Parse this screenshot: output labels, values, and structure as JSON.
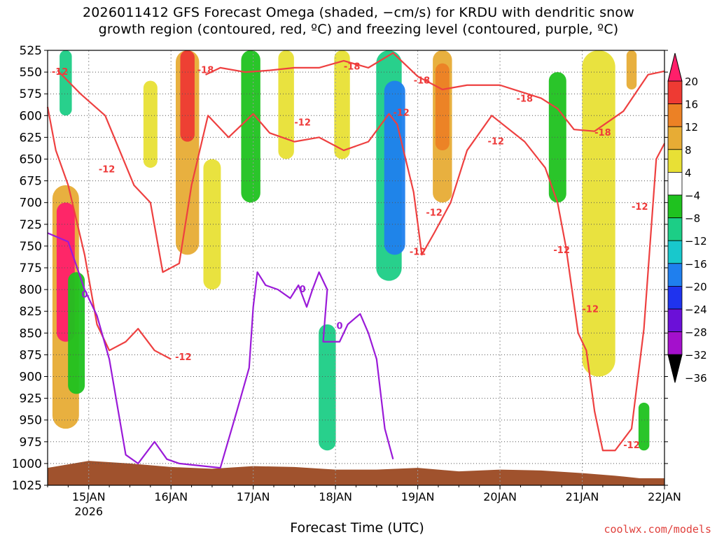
{
  "title": "2026011412 GFS Forecast Omega (shaded, −cm/s) for KRDU with dendritic snow\ngrowth region (contoured, red, ºC) and freezing level (contoured, purple, ºC)",
  "xlabel": "Forecast Time (UTC)",
  "credit": "coolwx.com/models",
  "chart_data": {
    "type": "heatmap",
    "title": "2026011412 GFS Forecast Omega (shaded, −cm/s) for KRDU with dendritic snow growth region (contoured, red, ºC) and freezing level (contoured, purple, ºC)",
    "xlabel": "Forecast Time (UTC)",
    "ylabel": "",
    "x_ticks": [
      "15JAN",
      "16JAN",
      "17JAN",
      "18JAN",
      "19JAN",
      "20JAN",
      "21JAN",
      "22JAN"
    ],
    "x_year_label": "2026",
    "xlim_days": [
      14.5,
      22.0
    ],
    "y_ticks": [
      525,
      550,
      575,
      600,
      625,
      650,
      675,
      700,
      725,
      750,
      775,
      800,
      825,
      850,
      875,
      900,
      925,
      950,
      975,
      1000,
      1025
    ],
    "ylim": [
      1025,
      525
    ],
    "grid": true,
    "colorbar": {
      "labels": [
        20,
        16,
        12,
        8,
        4,
        -4,
        -8,
        -12,
        -16,
        -20,
        -24,
        -28,
        -32,
        -36
      ],
      "colors": [
        "#ff1f6a",
        "#ee3a33",
        "#ec8125",
        "#e7ac35",
        "#e8e035",
        "#ffffff",
        "#1fc21f",
        "#1cce86",
        "#18c8cc",
        "#1f7fee",
        "#1f33ee",
        "#6b10d8",
        "#a410cc",
        "#a8a8a8",
        "#000000"
      ]
    },
    "shading_blobs": [
      {
        "day": 14.72,
        "p_top": 525,
        "p_bot": 600,
        "value": -12
      },
      {
        "day": 14.72,
        "p_top": 680,
        "p_bot": 960,
        "value": 8
      },
      {
        "day": 14.72,
        "p_top": 700,
        "p_bot": 860,
        "value": 20
      },
      {
        "day": 14.85,
        "p_top": 780,
        "p_bot": 920,
        "value": -8
      },
      {
        "day": 15.75,
        "p_top": 560,
        "p_bot": 660,
        "value": 4
      },
      {
        "day": 16.2,
        "p_top": 525,
        "p_bot": 760,
        "value": 8
      },
      {
        "day": 16.2,
        "p_top": 525,
        "p_bot": 630,
        "value": 16
      },
      {
        "day": 16.5,
        "p_top": 650,
        "p_bot": 800,
        "value": 4
      },
      {
        "day": 16.97,
        "p_top": 525,
        "p_bot": 700,
        "value": -8
      },
      {
        "day": 17.4,
        "p_top": 525,
        "p_bot": 650,
        "value": 4
      },
      {
        "day": 17.9,
        "p_top": 840,
        "p_bot": 985,
        "value": -12
      },
      {
        "day": 18.08,
        "p_top": 525,
        "p_bot": 650,
        "value": 4
      },
      {
        "day": 18.65,
        "p_top": 525,
        "p_bot": 790,
        "value": -12
      },
      {
        "day": 18.72,
        "p_top": 560,
        "p_bot": 760,
        "value": -20
      },
      {
        "day": 19.3,
        "p_top": 525,
        "p_bot": 700,
        "value": 8
      },
      {
        "day": 19.3,
        "p_top": 540,
        "p_bot": 640,
        "value": 12
      },
      {
        "day": 20.7,
        "p_top": 550,
        "p_bot": 700,
        "value": -8
      },
      {
        "day": 21.2,
        "p_top": 525,
        "p_bot": 900,
        "value": 4
      },
      {
        "day": 21.6,
        "p_top": 525,
        "p_bot": 570,
        "value": 8
      },
      {
        "day": 21.75,
        "p_top": 930,
        "p_bot": 985,
        "value": -8
      }
    ],
    "series": [
      {
        "name": "-18",
        "color": "#ee4040",
        "points": [
          [
            16.42,
            553
          ],
          [
            16.6,
            545
          ],
          [
            16.9,
            550
          ],
          [
            17.2,
            548
          ],
          [
            17.5,
            545
          ],
          [
            17.8,
            545
          ],
          [
            18.1,
            537
          ],
          [
            18.4,
            545
          ],
          [
            18.7,
            528
          ],
          [
            19.0,
            555
          ],
          [
            19.3,
            570
          ],
          [
            19.6,
            565
          ],
          [
            20.0,
            565
          ],
          [
            20.5,
            580
          ],
          [
            20.7,
            592
          ],
          [
            20.9,
            616
          ],
          [
            21.15,
            618
          ],
          [
            21.5,
            595
          ],
          [
            21.8,
            553
          ],
          [
            22.0,
            549
          ]
        ]
      },
      {
        "name": "-12",
        "color": "#ee4040",
        "points": [
          [
            14.62,
            548
          ],
          [
            14.9,
            575
          ],
          [
            15.2,
            600
          ],
          [
            15.55,
            680
          ],
          [
            15.75,
            700
          ],
          [
            15.9,
            780
          ],
          [
            16.1,
            770
          ],
          [
            16.25,
            680
          ],
          [
            16.45,
            600
          ],
          [
            16.7,
            625
          ],
          [
            17.0,
            598
          ],
          [
            17.2,
            620
          ],
          [
            17.5,
            630
          ],
          [
            17.8,
            625
          ],
          [
            18.1,
            640
          ],
          [
            18.4,
            630
          ],
          [
            18.65,
            598
          ],
          [
            18.75,
            610
          ],
          [
            18.95,
            688
          ],
          [
            19.05,
            760
          ],
          [
            19.2,
            735
          ],
          [
            19.4,
            700
          ],
          [
            19.6,
            640
          ],
          [
            19.9,
            600
          ],
          [
            20.3,
            630
          ],
          [
            20.55,
            660
          ],
          [
            20.7,
            700
          ],
          [
            20.8,
            750
          ],
          [
            20.95,
            850
          ],
          [
            21.05,
            870
          ],
          [
            21.15,
            940
          ],
          [
            21.25,
            985
          ],
          [
            21.4,
            985
          ],
          [
            21.6,
            960
          ],
          [
            21.75,
            845
          ],
          [
            21.9,
            650
          ],
          [
            22.0,
            632
          ]
        ]
      },
      {
        "name": "-12",
        "color": "#ee4040",
        "points": [
          [
            14.5,
            590
          ],
          [
            14.6,
            640
          ],
          [
            14.75,
            680
          ],
          [
            14.85,
            720
          ],
          [
            14.95,
            760
          ],
          [
            15.1,
            840
          ],
          [
            15.25,
            870
          ],
          [
            15.45,
            860
          ],
          [
            15.6,
            845
          ],
          [
            15.8,
            870
          ],
          [
            16.0,
            880
          ]
        ]
      },
      {
        "name": "0",
        "color": "#9a1ad8",
        "points": [
          [
            14.5,
            735
          ],
          [
            14.75,
            745
          ],
          [
            14.95,
            800
          ],
          [
            15.1,
            830
          ],
          [
            15.25,
            880
          ],
          [
            15.45,
            990
          ],
          [
            15.6,
            1000
          ],
          [
            15.8,
            975
          ],
          [
            15.95,
            995
          ],
          [
            16.1,
            1000
          ],
          [
            16.6,
            1005
          ],
          [
            16.8,
            940
          ],
          [
            16.95,
            890
          ],
          [
            17.0,
            820
          ],
          [
            17.05,
            780
          ],
          [
            17.15,
            795
          ],
          [
            17.3,
            800
          ],
          [
            17.45,
            810
          ],
          [
            17.55,
            795
          ],
          [
            17.65,
            820
          ],
          [
            17.72,
            800
          ],
          [
            17.8,
            780
          ],
          [
            17.9,
            800
          ],
          [
            17.85,
            860
          ],
          [
            18.05,
            860
          ],
          [
            18.15,
            840
          ],
          [
            18.3,
            828
          ],
          [
            18.4,
            850
          ],
          [
            18.5,
            880
          ],
          [
            18.6,
            960
          ],
          [
            18.7,
            995
          ]
        ]
      }
    ],
    "contour_labels": [
      {
        "text": "-12",
        "day": 14.65,
        "p": 550
      },
      {
        "text": "-12",
        "day": 15.22,
        "p": 662
      },
      {
        "text": "-18",
        "day": 16.42,
        "p": 548
      },
      {
        "text": "-12",
        "day": 17.6,
        "p": 608
      },
      {
        "text": "-18",
        "day": 18.2,
        "p": 544
      },
      {
        "text": "-12",
        "day": 18.8,
        "p": 597
      },
      {
        "text": "-18",
        "day": 19.05,
        "p": 560
      },
      {
        "text": "-12",
        "day": 19.0,
        "p": 757
      },
      {
        "text": "-12",
        "day": 19.2,
        "p": 712
      },
      {
        "text": "-12",
        "day": 19.95,
        "p": 630
      },
      {
        "text": "-18",
        "day": 20.3,
        "p": 581
      },
      {
        "text": "-12",
        "day": 20.75,
        "p": 755
      },
      {
        "text": "-12",
        "day": 21.1,
        "p": 823
      },
      {
        "text": "-18",
        "day": 21.25,
        "p": 620
      },
      {
        "text": "-12",
        "day": 21.7,
        "p": 705
      },
      {
        "text": "-12",
        "day": 21.6,
        "p": 979
      },
      {
        "text": "-12",
        "day": 16.15,
        "p": 878
      },
      {
        "text": "0",
        "day": 14.95,
        "p": 806
      },
      {
        "text": "0",
        "day": 17.6,
        "p": 800
      },
      {
        "text": "0",
        "day": 18.05,
        "p": 842
      }
    ],
    "terrain": [
      [
        14.5,
        1005
      ],
      [
        15.0,
        997
      ],
      [
        15.5,
        1000
      ],
      [
        16.0,
        1004
      ],
      [
        16.5,
        1006
      ],
      [
        17.0,
        1003
      ],
      [
        17.5,
        1004
      ],
      [
        18.0,
        1007
      ],
      [
        18.5,
        1007
      ],
      [
        19.0,
        1005
      ],
      [
        19.5,
        1009
      ],
      [
        20.0,
        1007
      ],
      [
        20.5,
        1008
      ],
      [
        21.0,
        1011
      ],
      [
        21.4,
        1014
      ],
      [
        21.7,
        1017
      ],
      [
        22.0,
        1017
      ]
    ]
  }
}
